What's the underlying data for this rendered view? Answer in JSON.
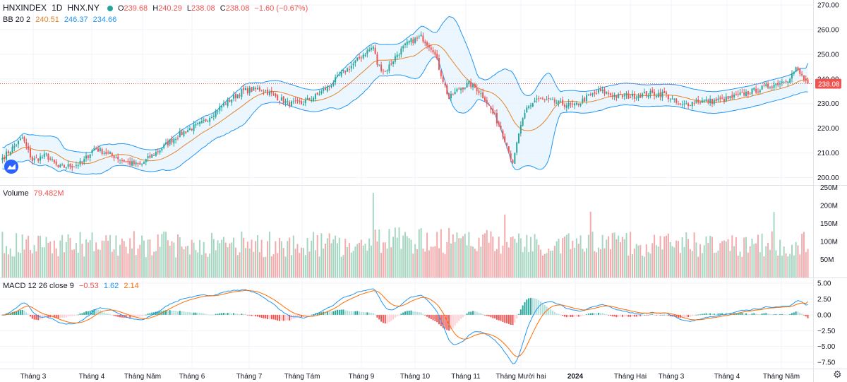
{
  "header": {
    "symbol": "HNXINDEX",
    "interval": "1D",
    "exchange": "HNX.NY",
    "ohlc": {
      "o_label": "O",
      "o_value": "239.68",
      "h_label": "H",
      "h_value": "240.29",
      "l_label": "L",
      "l_value": "238.08",
      "c_label": "C",
      "c_value": "238.08",
      "change": "−1.60 (−0.67%)"
    }
  },
  "bb_legend": {
    "label": "BB 20 2",
    "basis": "240.51",
    "upper": "246.37",
    "lower": "234.66"
  },
  "volume_legend": {
    "label": "Volume",
    "value": "79.482M"
  },
  "macd_legend": {
    "label": "MACD 12 26 close 9",
    "hist": "−0.53",
    "macd": "1.62",
    "signal": "2.14"
  },
  "last_price_tag": "238.08",
  "colors": {
    "up": "#26a69a",
    "down": "#ef5350",
    "vol_up": "#a5d6c1",
    "vol_down": "#f4a9ab",
    "bb_basis": "#e8832a",
    "bb_band": "#2196f3",
    "bb_fill": "#e3f2fd",
    "macd": "#2196f3",
    "signal": "#ff6d00",
    "hist_up": "#26a69a",
    "hist_up_light": "#b2dfdb",
    "hist_down": "#ef5350",
    "hist_down_light": "#ffcdd2"
  },
  "chart_data": {
    "type": "candlestick",
    "price_axis": {
      "ticks": [
        "270.00",
        "260.00",
        "250.00",
        "240.00",
        "230.00",
        "220.00",
        "210.00",
        "200.00"
      ],
      "ylim": [
        197,
        272
      ]
    },
    "volume_axis": {
      "ticks": [
        "250M",
        "200M",
        "150M",
        "100M",
        "50M"
      ],
      "ylim": [
        0,
        255
      ]
    },
    "macd_axis": {
      "ticks": [
        "5.00",
        "2.50",
        "0.00",
        "−2.50",
        "−5.00",
        "−7.50"
      ],
      "ylim": [
        -8.5,
        5.8
      ]
    },
    "time_axis": [
      "Tháng 3",
      "Tháng 4",
      "Tháng Năm",
      "Tháng 6",
      "Tháng 7",
      "Tháng Tám",
      "Tháng 9",
      "Tháng 10",
      "Tháng 11",
      "Tháng Mười hai",
      "2024",
      "Tháng Hai",
      "Tháng 3",
      "Tháng 4",
      "Tháng Năm"
    ],
    "time_axis_bold_index": 10,
    "close_anchors": [
      [
        0,
        208
      ],
      [
        5,
        212
      ],
      [
        10,
        216
      ],
      [
        15,
        207
      ],
      [
        22,
        209
      ],
      [
        28,
        204
      ],
      [
        36,
        205
      ],
      [
        40,
        206
      ],
      [
        46,
        212
      ],
      [
        52,
        210
      ],
      [
        58,
        208
      ],
      [
        63,
        206
      ],
      [
        69,
        205
      ],
      [
        75,
        209
      ],
      [
        80,
        212
      ],
      [
        86,
        216
      ],
      [
        92,
        219
      ],
      [
        100,
        222
      ],
      [
        110,
        229
      ],
      [
        120,
        235
      ],
      [
        130,
        236
      ],
      [
        137,
        233
      ],
      [
        143,
        230
      ],
      [
        150,
        230
      ],
      [
        157,
        233
      ],
      [
        164,
        237
      ],
      [
        170,
        242
      ],
      [
        176,
        246
      ],
      [
        181,
        250
      ],
      [
        186,
        253
      ],
      [
        188,
        246
      ],
      [
        192,
        243
      ],
      [
        198,
        250
      ],
      [
        204,
        255
      ],
      [
        210,
        257
      ],
      [
        216,
        252
      ],
      [
        220,
        242
      ],
      [
        224,
        232
      ],
      [
        229,
        236
      ],
      [
        234,
        238
      ],
      [
        238,
        236
      ],
      [
        242,
        232
      ],
      [
        246,
        226
      ],
      [
        250,
        220
      ],
      [
        254,
        211
      ],
      [
        256,
        205
      ],
      [
        259,
        218
      ],
      [
        263,
        228
      ],
      [
        268,
        232
      ],
      [
        274,
        231
      ],
      [
        280,
        230
      ],
      [
        287,
        229
      ],
      [
        294,
        233
      ],
      [
        300,
        235
      ],
      [
        308,
        233
      ],
      [
        316,
        233
      ],
      [
        324,
        234
      ],
      [
        332,
        234
      ],
      [
        340,
        229
      ],
      [
        348,
        231
      ],
      [
        356,
        231
      ],
      [
        364,
        232
      ],
      [
        372,
        234
      ],
      [
        380,
        236
      ],
      [
        388,
        238
      ],
      [
        394,
        240
      ],
      [
        398,
        244
      ],
      [
        401,
        241
      ],
      [
        404,
        238
      ]
    ],
    "bb_basis_end": 240.51,
    "bb_upper_end": 246.37,
    "bb_lower_end": 234.66,
    "last": {
      "open": 239.68,
      "high": 240.29,
      "low": 238.08,
      "close": 238.08,
      "volume_m": 79.482
    },
    "macd_last": {
      "macd": 1.62,
      "signal": 2.14,
      "hist": -0.53
    }
  }
}
